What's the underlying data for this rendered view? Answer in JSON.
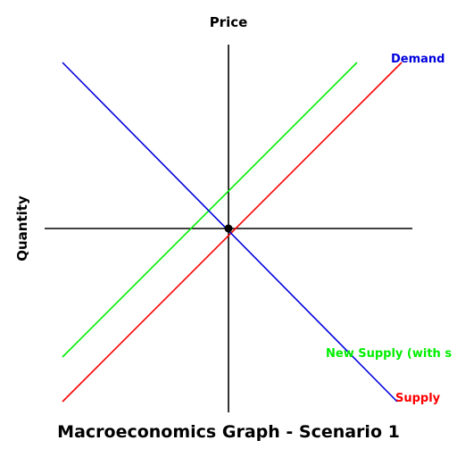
{
  "title": "Macroeconomics Graph - Scenario 1",
  "axes": {
    "vertical_label": "Price",
    "horizontal_label": "Quantity"
  },
  "curves": {
    "demand": {
      "label": "Demand",
      "color": "#0000dd"
    },
    "supply": {
      "label": "Supply",
      "color": "#ff0000"
    },
    "new_supply": {
      "label": "New Supply (with s",
      "color": "#00ee00"
    }
  },
  "equilibrium_point": {
    "color": "#000000"
  }
}
